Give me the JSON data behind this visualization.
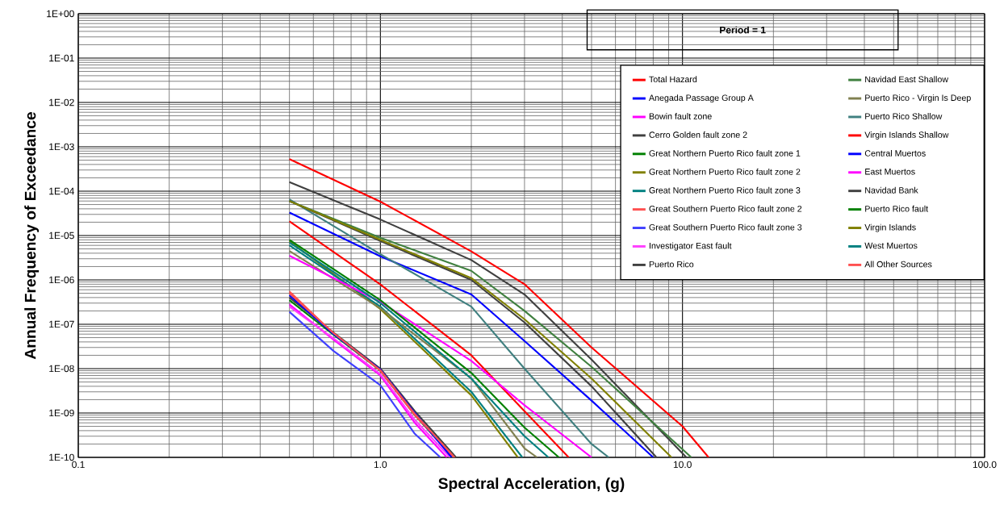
{
  "chart_data": {
    "type": "line",
    "title": "Period = 1",
    "xlabel": "Spectral Acceleration, (g)",
    "ylabel": "Annual Frequency of Exceedance",
    "log": "xy",
    "grid": true,
    "legend": "right",
    "marker": "none",
    "line_style": "solid",
    "xlim": [
      0.1,
      100
    ],
    "ylim": [
      1e-10,
      1
    ],
    "xticks": [
      {
        "value": 0.1,
        "label": "0.1"
      },
      {
        "value": 1,
        "label": "1.0"
      },
      {
        "value": 10,
        "label": "10.0"
      },
      {
        "value": 100,
        "label": "100.0"
      }
    ],
    "yticks": [
      {
        "value": 1e-10,
        "label": "1E-10"
      },
      {
        "value": 1e-09,
        "label": "1E-09"
      },
      {
        "value": 1e-08,
        "label": "1E-08"
      },
      {
        "value": 1e-07,
        "label": "1E-07"
      },
      {
        "value": 1e-06,
        "label": "1E-06"
      },
      {
        "value": 1e-05,
        "label": "1E-05"
      },
      {
        "value": 0.0001,
        "label": "1E-04"
      },
      {
        "value": 0.001,
        "label": "1E-03"
      },
      {
        "value": 0.01,
        "label": "1E-02"
      },
      {
        "value": 0.1,
        "label": "1E-01"
      },
      {
        "value": 1,
        "label": "1E+00"
      }
    ],
    "series": [
      {
        "name": "Total Hazard",
        "color": "#ff0000",
        "x": [
          0.5,
          1,
          2,
          3,
          5,
          10,
          12.2
        ],
        "values": [
          0.00053,
          5.8e-05,
          4.4e-06,
          8e-07,
          3e-08,
          5e-10,
          1e-10
        ]
      },
      {
        "name": "Anegada Passage Group A",
        "color": "#0000ff",
        "x": [
          0.5,
          1,
          2,
          3,
          5,
          8.0
        ],
        "values": [
          3.3e-05,
          3.4e-06,
          4.7e-07,
          4.2e-08,
          1.9e-09,
          1e-10
        ]
      },
      {
        "name": "Bowin fault zone",
        "color": "#ff00ff",
        "x": [
          0.5,
          0.7,
          1,
          1.3,
          1.66
        ],
        "values": [
          2.8e-07,
          4.5e-08,
          7e-09,
          6e-10,
          1e-10
        ]
      },
      {
        "name": "Cerro Golden fault zone 2",
        "color": "#404040",
        "x": [
          0.5,
          0.7,
          1,
          1.3,
          1.78
        ],
        "values": [
          4e-07,
          6.5e-08,
          1e-08,
          1.1e-09,
          1e-10
        ]
      },
      {
        "name": "Great Northern Puerto Rico fault zone 1",
        "color": "#008000",
        "x": [
          0.5,
          0.7,
          1,
          1.3,
          1.74
        ],
        "values": [
          3.5e-07,
          5.8e-08,
          9e-09,
          9e-10,
          1e-10
        ]
      },
      {
        "name": "Great Northern Puerto Rico fault zone 2",
        "color": "#808000",
        "x": [
          0.5,
          1,
          2,
          2.85
        ],
        "values": [
          7.5e-06,
          2.2e-07,
          2.5e-09,
          1e-10
        ]
      },
      {
        "name": "Great Northern Puerto Rico fault zone 3",
        "color": "#008080",
        "x": [
          0.5,
          1,
          2,
          2.95
        ],
        "values": [
          6e-06,
          2.5e-07,
          3e-09,
          1e-10
        ]
      },
      {
        "name": "Great Southern Puerto Rico fault zone 2",
        "color": "#ff5050",
        "x": [
          0.5,
          0.7,
          1,
          1.3,
          1.75
        ],
        "values": [
          5.5e-07,
          6.2e-08,
          9e-09,
          9e-10,
          1e-10
        ]
      },
      {
        "name": "Great Southern Puerto Rico fault zone 3",
        "color": "#4040ff",
        "x": [
          0.5,
          0.7,
          1,
          1.3,
          1.58
        ],
        "values": [
          1.9e-07,
          2.5e-08,
          4.2e-09,
          3.4e-10,
          1e-10
        ]
      },
      {
        "name": "Investigator East fault",
        "color": "#ff40ff",
        "x": [
          0.5,
          0.7,
          1,
          1.3,
          1.7
        ],
        "values": [
          2.5e-07,
          4.8e-08,
          7.5e-09,
          7e-10,
          1e-10
        ]
      },
      {
        "name": "Puerto Rico",
        "color": "#404040",
        "x": [
          0.5,
          1,
          2,
          3,
          5,
          10.3
        ],
        "values": [
          0.00016,
          2.3e-05,
          2.8e-06,
          4.7e-07,
          1.6e-08,
          1e-10
        ]
      },
      {
        "name": "Navidad East Shallow",
        "color": "#408040",
        "x": [
          0.5,
          1,
          2,
          3,
          5,
          10.7
        ],
        "values": [
          6e-05,
          8.9e-06,
          1.6e-06,
          2e-07,
          1.1e-08,
          1e-10
        ]
      },
      {
        "name": "Puerto Rico - Virgin Is Deep",
        "color": "#808050",
        "x": [
          0.5,
          1,
          2,
          3,
          3.3
        ],
        "values": [
          4.5e-06,
          2.3e-07,
          6e-09,
          1.6e-10,
          1e-10
        ]
      },
      {
        "name": "Puerto Rico Shallow",
        "color": "#408080",
        "x": [
          0.5,
          1,
          2,
          3,
          5,
          5.7
        ],
        "values": [
          6.5e-05,
          3.8e-06,
          2.5e-07,
          1e-08,
          2e-10,
          1e-10
        ]
      },
      {
        "name": "Virgin Islands Shallow",
        "color": "#ff0000",
        "x": [
          0.5,
          1,
          2,
          3,
          4.2
        ],
        "values": [
          2.1e-05,
          7.9e-07,
          2e-08,
          1.1e-09,
          1e-10
        ]
      },
      {
        "name": "Central Muertos",
        "color": "#0000ff",
        "x": [
          0.5,
          0.7,
          1,
          1.3,
          1.72
        ],
        "values": [
          4.5e-07,
          6e-08,
          9.5e-09,
          1e-09,
          1e-10
        ]
      },
      {
        "name": "East Muertos",
        "color": "#ff00ff",
        "x": [
          0.5,
          1,
          2,
          3,
          5.0
        ],
        "values": [
          3.5e-06,
          3.2e-07,
          1.5e-08,
          1.5e-09,
          1e-10
        ]
      },
      {
        "name": "Navidad Bank",
        "color": "#404040",
        "x": [
          0.5,
          1,
          2,
          3,
          5,
          8.2
        ],
        "values": [
          6e-05,
          7.5e-06,
          1e-06,
          1.1e-07,
          4e-09,
          1e-10
        ]
      },
      {
        "name": "Puerto Rico fault",
        "color": "#008000",
        "x": [
          0.5,
          1,
          2,
          3,
          3.9
        ],
        "values": [
          8e-06,
          3.5e-07,
          8e-09,
          4.7e-10,
          1e-10
        ]
      },
      {
        "name": "Virgin Islands",
        "color": "#808000",
        "x": [
          0.5,
          1,
          2,
          3,
          5,
          9.2
        ],
        "values": [
          6e-05,
          8e-06,
          1.1e-06,
          1.3e-07,
          6e-09,
          1e-10
        ]
      },
      {
        "name": "West Muertos",
        "color": "#008080",
        "x": [
          0.5,
          1,
          2,
          3,
          3.6
        ],
        "values": [
          7e-06,
          3e-07,
          6e-09,
          3e-10,
          1e-10
        ]
      },
      {
        "name": "All Other Sources",
        "color": "#ff5050",
        "x": [
          0.5,
          0.7,
          1,
          1.3,
          1.76
        ],
        "values": [
          5e-07,
          6.3e-08,
          9.2e-09,
          9.5e-10,
          1e-10
        ]
      }
    ]
  }
}
